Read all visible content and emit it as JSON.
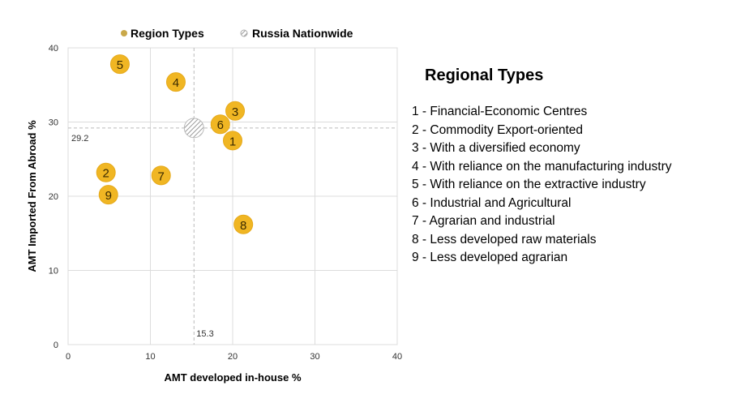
{
  "chart_data": {
    "type": "scatter",
    "xlabel": "AMT developed in-house  %",
    "ylabel": "AMT Imported From Abroad  %",
    "xlim": [
      0,
      40
    ],
    "ylim": [
      0,
      40
    ],
    "xticks": [
      "0",
      "10",
      "20",
      "30",
      "40"
    ],
    "yticks": [
      "0",
      "10",
      "20",
      "30",
      "40"
    ],
    "grid": true,
    "legend": {
      "placement": "top",
      "entries": [
        "Region Types",
        "Russia Nationwide"
      ]
    },
    "series": [
      {
        "name": "Region Types",
        "color": "#f0b623",
        "points": [
          {
            "label": "1",
            "x": 20.0,
            "y": 27.5
          },
          {
            "label": "2",
            "x": 4.6,
            "y": 23.2
          },
          {
            "label": "3",
            "x": 20.3,
            "y": 31.5
          },
          {
            "label": "4",
            "x": 13.1,
            "y": 35.4
          },
          {
            "label": "5",
            "x": 6.3,
            "y": 37.8
          },
          {
            "label": "6",
            "x": 18.5,
            "y": 29.7
          },
          {
            "label": "7",
            "x": 11.3,
            "y": 22.8
          },
          {
            "label": "8",
            "x": 21.3,
            "y": 16.2
          },
          {
            "label": "9",
            "x": 4.9,
            "y": 20.2
          }
        ]
      },
      {
        "name": "Russia Nationwide",
        "color": "#b0b0b0",
        "points": [
          {
            "label": "",
            "x": 15.3,
            "y": 29.2
          }
        ]
      }
    ],
    "reference_lines": {
      "x": 15.3,
      "y": 29.2,
      "x_label": "15.3",
      "y_label": "29.2"
    }
  },
  "side_legend": {
    "title": "Regional Types",
    "items": [
      "1 - Financial-Economic Centres",
      "2 - Commodity Export-oriented",
      "3 - With a diversified economy",
      "4 - With reliance on the manufacturing industry",
      "5 - With reliance on the extractive industry",
      "6 - Industrial and Agricultural",
      "7 - Agrarian and industrial",
      "8 - Less developed raw materials",
      "9 - Less developed agrarian"
    ]
  }
}
